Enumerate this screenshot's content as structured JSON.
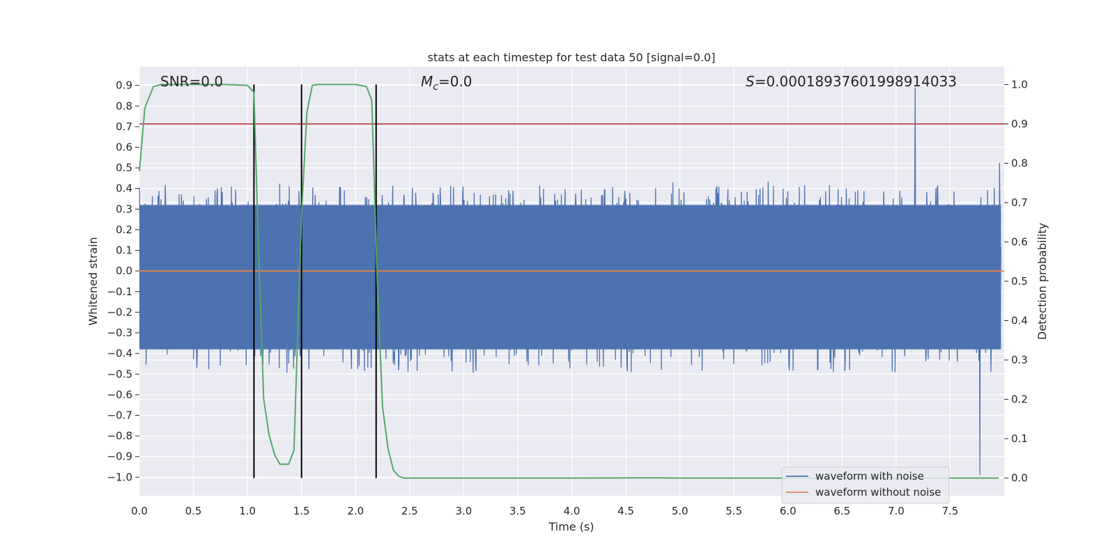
{
  "chart_data": {
    "type": "line",
    "title": "stats at each timestep for test data 50 [signal=0.0]",
    "xlabel": "Time (s)",
    "ylabel": "Whitened strain",
    "ylabel_right": "Detection probability",
    "xlim": [
      0.0,
      8.0
    ],
    "ylim": [
      -1.09,
      0.99
    ],
    "ylim_right": [
      -0.045,
      1.045
    ],
    "xticks": [
      0.0,
      0.5,
      1.0,
      1.5,
      2.0,
      2.5,
      3.0,
      3.5,
      4.0,
      4.5,
      5.0,
      5.5,
      6.0,
      6.5,
      7.0,
      7.5
    ],
    "xtick_labels": [
      "0.0",
      "0.5",
      "1.0",
      "1.5",
      "2.0",
      "2.5",
      "3.0",
      "3.5",
      "4.0",
      "4.5",
      "5.0",
      "5.5",
      "6.0",
      "6.5",
      "7.0",
      "7.5"
    ],
    "yticks": [
      0.9,
      0.8,
      0.7,
      0.6,
      0.5,
      0.4,
      0.3,
      0.2,
      0.1,
      0.0,
      -0.1,
      -0.2,
      -0.3,
      -0.4,
      -0.5,
      -0.6,
      -0.7,
      -0.8,
      -0.9,
      -1.0
    ],
    "ytick_labels": [
      "0.9",
      "0.8",
      "0.7",
      "0.6",
      "0.5",
      "0.4",
      "0.3",
      "0.2",
      "0.1",
      "0.0",
      "−0.1",
      "−0.2",
      "−0.3",
      "−0.4",
      "−0.5",
      "−0.6",
      "−0.7",
      "−0.8",
      "−0.9",
      "−1.0"
    ],
    "yticks_right": [
      1.0,
      0.9,
      0.8,
      0.7,
      0.6,
      0.5,
      0.4,
      0.3,
      0.2,
      0.1,
      0.0
    ],
    "ytick_labels_right": [
      "1.0",
      "0.9",
      "0.8",
      "0.7",
      "0.6",
      "0.5",
      "0.4",
      "0.3",
      "0.2",
      "0.1",
      "0.0"
    ],
    "annotations": {
      "snr": "SNR=0.0",
      "mc_symbol": "M",
      "mc_subscript": "c",
      "mc_value": "=0.0",
      "s_symbol": "S",
      "s_value": "=0.00018937601998914033"
    },
    "threshold": 0.9,
    "vertical_lines_x": [
      1.06,
      1.5,
      2.19
    ],
    "noise": {
      "description": "whitened strain with noise, dense random signal",
      "duration_s": 8.0,
      "n_points": 1800,
      "envelope_low": -0.38,
      "envelope_high": 0.32,
      "max_peak": 0.89,
      "min_peak": -0.99
    },
    "series": [
      {
        "name": "waveform with noise",
        "color": "#4c72b0",
        "axis": "left"
      },
      {
        "name": "waveform without noise",
        "color": "#dd8452",
        "axis": "left",
        "x": [
          0.0,
          8.0
        ],
        "y": [
          0.0,
          0.0
        ]
      },
      {
        "name": "detection probability",
        "color": "#55a868",
        "axis": "right",
        "x": [
          0.0,
          0.05,
          0.13,
          0.2,
          0.3,
          0.5,
          0.8,
          1.0,
          1.06,
          1.1,
          1.15,
          1.2,
          1.25,
          1.3,
          1.38,
          1.43,
          1.5,
          1.55,
          1.6,
          1.65,
          1.7,
          1.8,
          2.0,
          2.1,
          2.15,
          2.2,
          2.25,
          2.3,
          2.35,
          2.4,
          2.45,
          2.5,
          3.0,
          4.0,
          4.8,
          5.0,
          6.0,
          7.0,
          7.95
        ],
        "y": [
          0.78,
          0.94,
          0.995,
          1.0,
          1.0,
          1.0,
          1.0,
          0.998,
          0.98,
          0.6,
          0.2,
          0.11,
          0.06,
          0.035,
          0.035,
          0.07,
          0.67,
          0.93,
          0.998,
          1.0,
          1.0,
          1.0,
          1.0,
          0.995,
          0.96,
          0.5,
          0.18,
          0.075,
          0.02,
          0.004,
          0.0,
          0.0,
          0.0,
          0.0,
          0.0005,
          0.0,
          0.0,
          0.0,
          0.0
        ]
      }
    ],
    "legend": {
      "placement": "lower right",
      "entries": [
        "waveform with noise",
        "waveform without noise"
      ]
    },
    "colors": {
      "axes_bg": "#eaeaf2",
      "grid": "#ffffff",
      "threshold": "#c44e52",
      "vlines": "#000000"
    }
  }
}
